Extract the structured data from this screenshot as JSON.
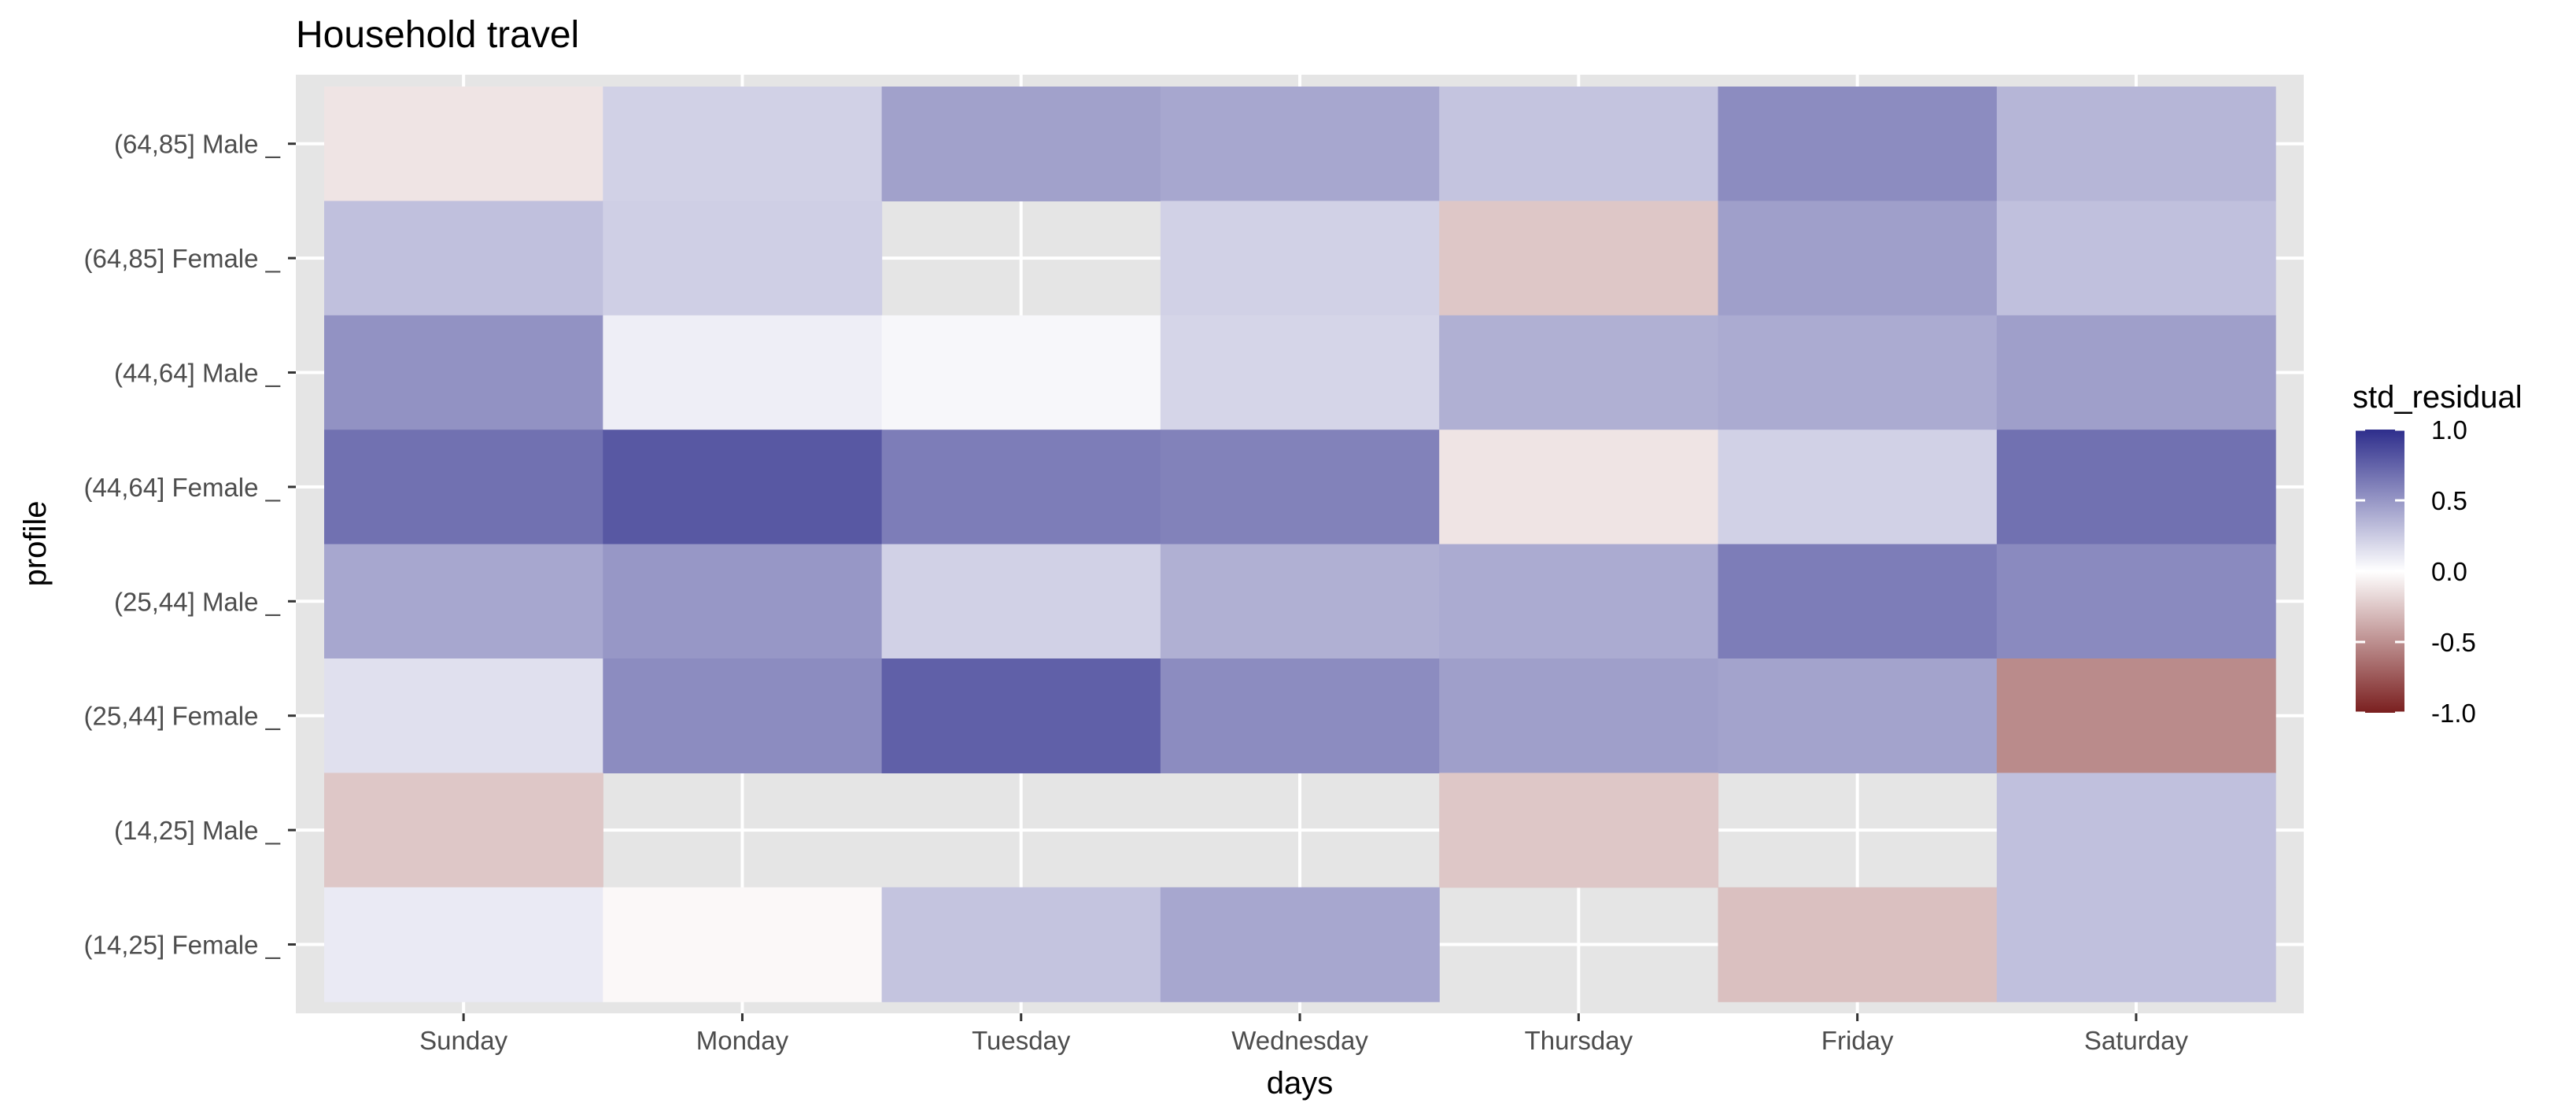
{
  "chart_data": {
    "type": "heatmap",
    "title": "Household travel",
    "xlabel": "days",
    "ylabel": "profile",
    "x": [
      "Sunday",
      "Monday",
      "Tuesday",
      "Wednesday",
      "Thursday",
      "Friday",
      "Saturday"
    ],
    "y": [
      "(64,85] Male _",
      "(64,85] Female _",
      "(44,64] Male _",
      "(44,64] Female _",
      "(25,44] Male _",
      "(25,44] Female _",
      "(14,25] Male _",
      "(14,25] Female _"
    ],
    "values": [
      [
        -0.12,
        0.22,
        0.45,
        0.42,
        0.28,
        0.55,
        0.35
      ],
      [
        0.3,
        0.23,
        null,
        0.22,
        -0.25,
        0.46,
        0.3
      ],
      [
        0.52,
        0.08,
        0.04,
        0.2,
        0.38,
        0.4,
        0.46
      ],
      [
        0.68,
        0.8,
        0.62,
        0.6,
        -0.12,
        0.22,
        0.68
      ],
      [
        0.42,
        0.5,
        0.22,
        0.38,
        0.4,
        0.62,
        0.56
      ],
      [
        0.15,
        0.55,
        0.76,
        0.55,
        0.46,
        0.44,
        -0.52
      ],
      [
        -0.25,
        null,
        null,
        null,
        -0.25,
        null,
        0.3
      ],
      [
        0.1,
        -0.03,
        0.28,
        0.42,
        null,
        -0.28,
        0.3
      ]
    ],
    "legend": {
      "title": "std_residual",
      "ticks": [
        1.0,
        0.5,
        0.0,
        -0.5,
        -1.0
      ],
      "tick_labels": [
        "1.0",
        "0.5",
        "0.0",
        "-0.5",
        "-1.0"
      ],
      "range": [
        -1.0,
        1.0
      ],
      "position": "right"
    },
    "colors": {
      "high": "#2e2e8c",
      "mid": "#ffffff",
      "low": "#7a1f1f",
      "panel_background": "#e5e5e5",
      "gridline": "#ffffff"
    },
    "grid": true
  }
}
